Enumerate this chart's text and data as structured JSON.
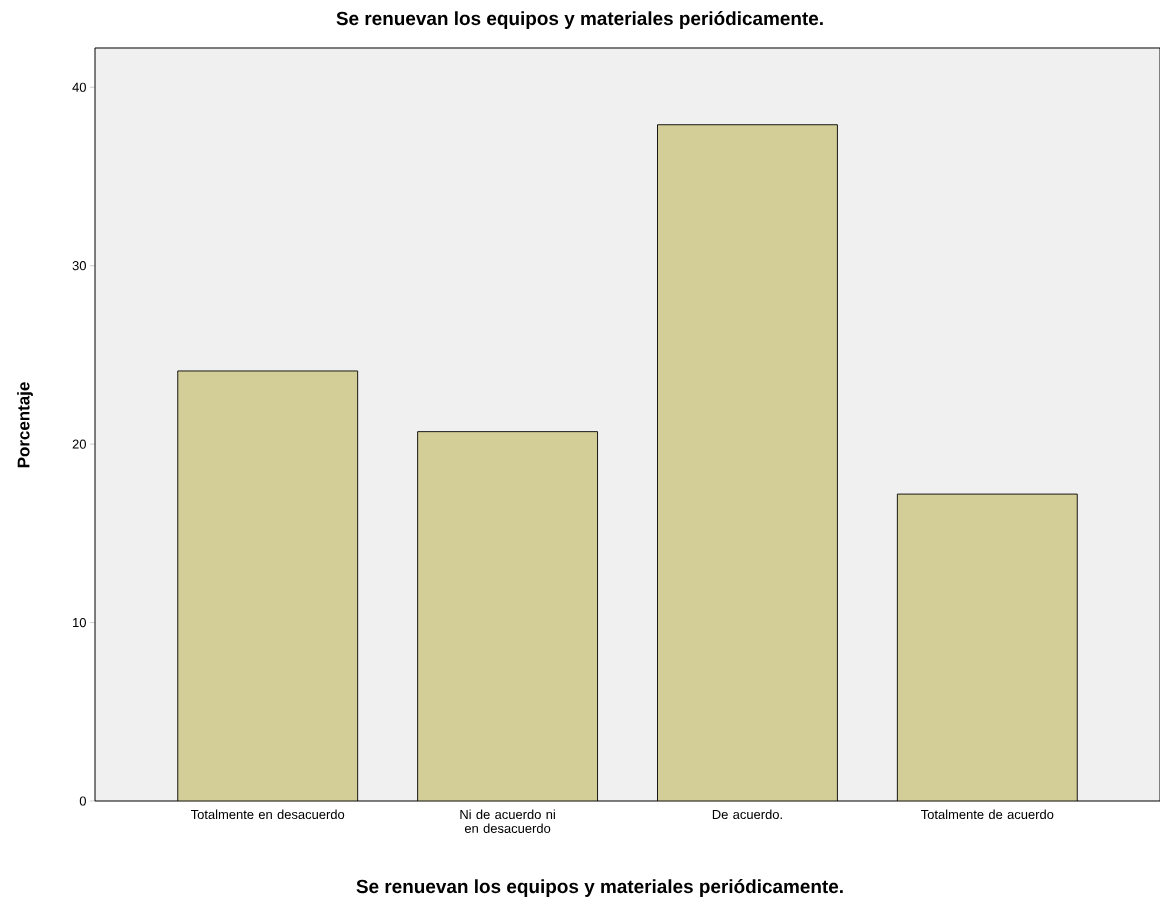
{
  "chart_data": {
    "type": "bar",
    "title": "Se renuevan los equipos y materiales periódicamente.",
    "xlabel": "Se renuevan los equipos y materiales periódicamente.",
    "ylabel": "Porcentaje",
    "categories": [
      "Totalmente en desacuerdo",
      "Ni de acuerdo ni en desacuerdo",
      "De acuerdo.",
      "Totalmente de acuerdo"
    ],
    "values": [
      24.1,
      20.7,
      37.9,
      17.2
    ],
    "color": "#d3ce97",
    "ylim": [
      0,
      42.2
    ],
    "yticks": [
      0,
      10,
      20,
      30,
      40
    ]
  }
}
